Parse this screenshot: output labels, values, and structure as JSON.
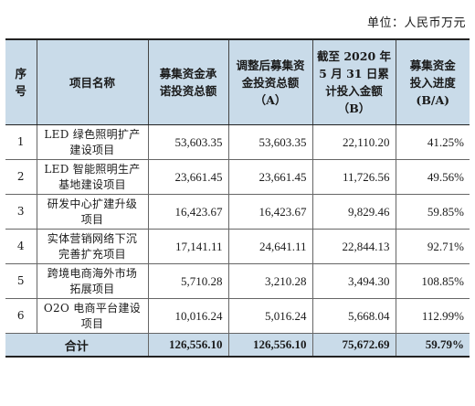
{
  "unit": "单位：人民币万元",
  "header": {
    "idx_top": "序",
    "idx_bottom": "号",
    "name": "项目名称",
    "col_a": [
      "募集资金承",
      "诺投资总额"
    ],
    "col_b": [
      "调整后募集资",
      "金投资总额",
      "（A）"
    ],
    "col_c": [
      "截至 2020 年",
      "5 月 31 日累",
      "计投入金额",
      "（B）"
    ],
    "col_d": [
      "募集资金",
      "投入进度",
      "(B/A)"
    ]
  },
  "rows": [
    {
      "idx": "1",
      "name": [
        "LED 绿色照明扩产",
        "建设项目"
      ],
      "a": "53,603.35",
      "b": "53,603.35",
      "c": "22,110.20",
      "d": "41.25%"
    },
    {
      "idx": "2",
      "name": [
        "LED 智能照明生产",
        "基地建设项目"
      ],
      "a": "23,661.45",
      "b": "23,661.45",
      "c": "11,726.56",
      "d": "49.56%"
    },
    {
      "idx": "3",
      "name": [
        "研发中心扩建升级",
        "项目"
      ],
      "a": "16,423.67",
      "b": "16,423.67",
      "c": "9,829.46",
      "d": "59.85%"
    },
    {
      "idx": "4",
      "name": [
        "实体营销网络下沉",
        "完善扩充项目"
      ],
      "a": "17,141.11",
      "b": "24,641.11",
      "c": "22,844.13",
      "d": "92.71%"
    },
    {
      "idx": "5",
      "name": [
        "跨境电商海外市场",
        "拓展项目"
      ],
      "a": "5,710.28",
      "b": "3,210.28",
      "c": "3,494.30",
      "d": "108.85%"
    },
    {
      "idx": "6",
      "name": [
        "O2O 电商平台建设",
        "项目"
      ],
      "a": "10,016.24",
      "b": "5,016.24",
      "c": "5,668.04",
      "d": "112.99%"
    }
  ],
  "total": {
    "label": "合计",
    "a": "126,556.10",
    "b": "126,556.10",
    "c": "75,672.69",
    "d": "59.79%"
  },
  "colors": {
    "header_bg": "#c9dbe9"
  }
}
